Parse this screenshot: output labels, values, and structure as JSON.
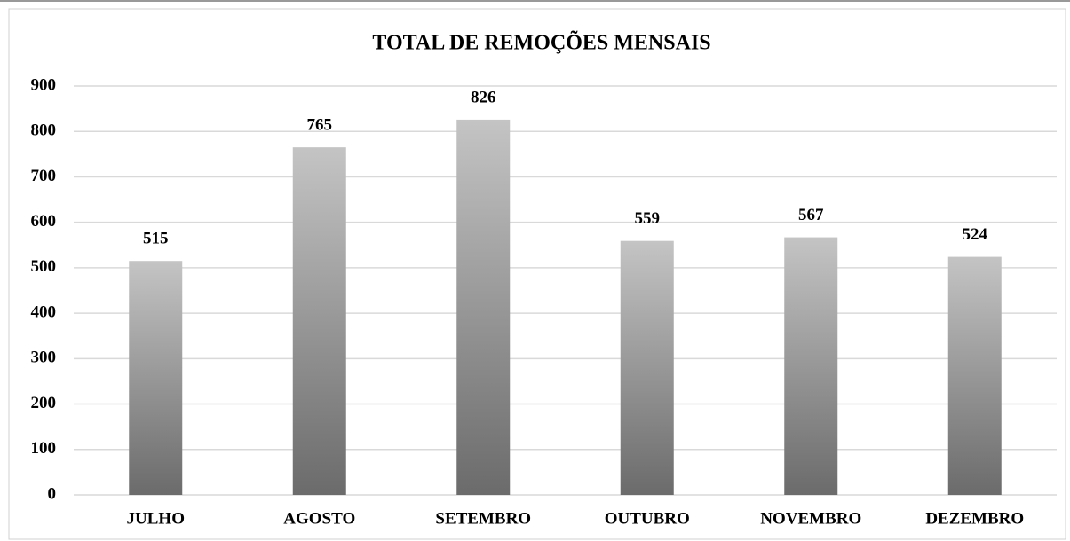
{
  "chart_data": {
    "type": "bar",
    "title": "TOTAL DE REMOÇÕES MENSAIS",
    "categories": [
      "JULHO",
      "AGOSTO",
      "SETEMBRO",
      "OUTUBRO",
      "NOVEMBRO",
      "DEZEMBRO"
    ],
    "values": [
      515,
      765,
      826,
      559,
      567,
      524
    ],
    "color": "#8c8c8c",
    "ylim": [
      0,
      900
    ],
    "yticks": [
      0,
      100,
      200,
      300,
      400,
      500,
      600,
      700,
      800,
      900
    ],
    "grid": true
  }
}
